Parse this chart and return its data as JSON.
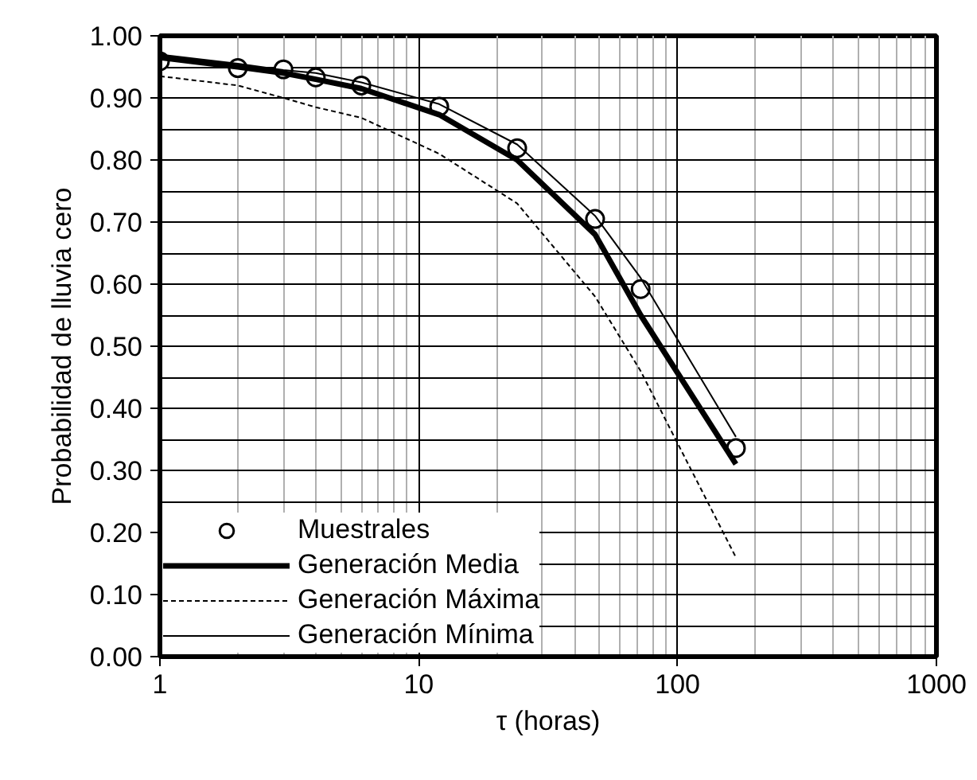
{
  "chart_data": {
    "type": "line",
    "xlabel": "τ (horas)",
    "ylabel": "Probabilidad de lluvia cero",
    "x": [
      1,
      2,
      3,
      4,
      6,
      12,
      24,
      48,
      72,
      168
    ],
    "series": [
      {
        "name": "Muestrales",
        "type": "scatter",
        "marker": "circle",
        "color": "#000000",
        "values": [
          0.959,
          0.948,
          0.946,
          0.933,
          0.92,
          0.886,
          0.819,
          0.705,
          0.592,
          0.336
        ]
      },
      {
        "name": "Generación Media",
        "line_style": "solid",
        "color": "#000000",
        "values": [
          0.965,
          0.95,
          0.94,
          0.93,
          0.915,
          0.873,
          0.8,
          0.68,
          0.55,
          0.31
        ]
      },
      {
        "name": "Generación Máxima",
        "line_style": "dashed",
        "color": "#000000",
        "values": [
          0.935,
          0.92,
          0.9,
          0.885,
          0.868,
          0.81,
          0.73,
          0.58,
          0.46,
          0.16
        ]
      },
      {
        "name": "Generación Mínima",
        "line_style": "solid",
        "color": "#000000",
        "values": [
          0.97,
          0.955,
          0.945,
          0.94,
          0.925,
          0.89,
          0.825,
          0.71,
          0.61,
          0.354
        ]
      }
    ],
    "log": "x",
    "xlim": [
      1,
      1000
    ],
    "xticks": [
      1,
      10,
      100,
      1000
    ],
    "ylim": [
      0,
      1
    ],
    "yticks": [
      {
        "value": 0,
        "label": "0.00"
      },
      {
        "value": 0.1,
        "label": "0.10"
      },
      {
        "value": 0.2,
        "label": "0.20"
      },
      {
        "value": 0.3,
        "label": "0.30"
      },
      {
        "value": 0.4,
        "label": "0.40"
      },
      {
        "value": 0.5,
        "label": "0.50"
      },
      {
        "value": 0.6,
        "label": "0.60"
      },
      {
        "value": 0.7,
        "label": "0.70"
      },
      {
        "value": 0.8,
        "label": "0.80"
      },
      {
        "value": 0.9,
        "label": "0.90"
      },
      {
        "value": 1,
        "label": "1.00"
      }
    ],
    "grid": true,
    "legend": "bottom left"
  }
}
